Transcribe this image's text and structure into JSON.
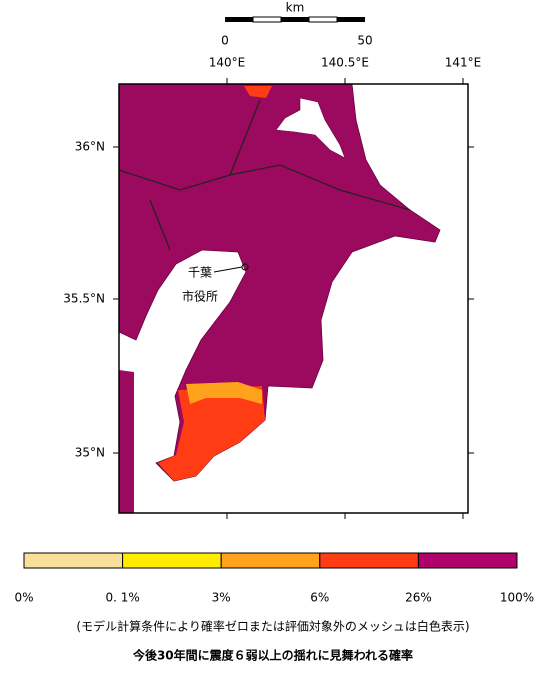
{
  "scale_bar": {
    "unit": "km",
    "labels": [
      "0",
      "50"
    ]
  },
  "map": {
    "x_labels": [
      "140°E",
      "140.5°E",
      "141°E"
    ],
    "y_labels": [
      "36°N",
      "35.5°N",
      "35°N"
    ],
    "place": {
      "name": "千葉",
      "name2": "市役所"
    }
  },
  "legend": {
    "colors": [
      "#f8e09a",
      "#ffec00",
      "#ffa21c",
      "#ff3c14",
      "#b0006a"
    ],
    "labels": [
      "0%",
      "0. 1%",
      "3%",
      "6%",
      "26%",
      "100%"
    ]
  },
  "note": "(モデル計算条件により確率ゼロまたは評価対象外のメッシュは白色表示)",
  "title": "今後30年間に震度６弱以上の揺れに見舞われる確率"
}
